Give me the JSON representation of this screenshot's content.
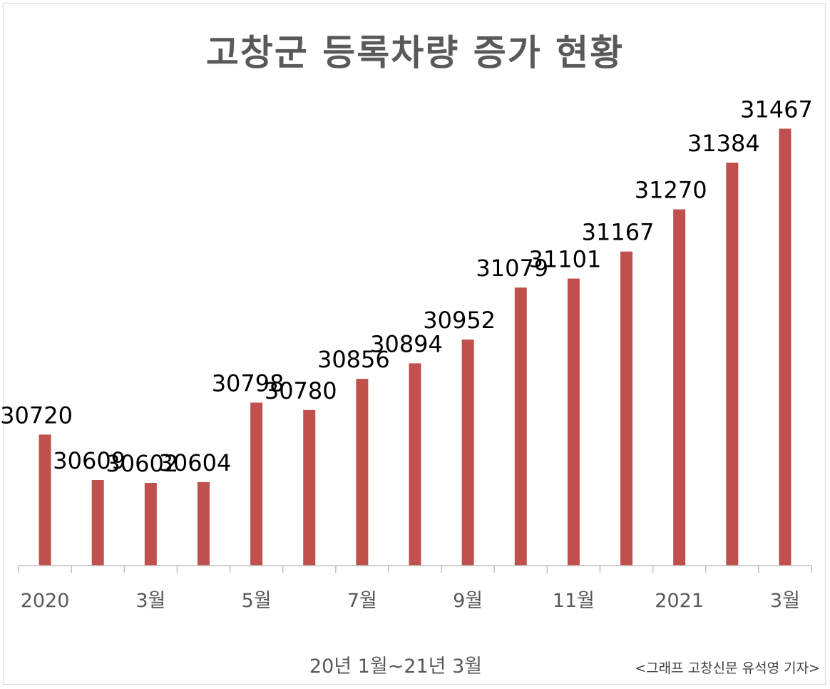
{
  "chart_data": {
    "type": "bar",
    "title": "고창군 등록차량 증가 현황",
    "xlabel": "20년 1월~21년 3월",
    "ylabel": "",
    "categories": [
      "2020",
      "",
      "3월",
      "",
      "5월",
      "",
      "7월",
      "",
      "9월",
      "",
      "11월",
      "",
      "2021",
      "",
      "3월"
    ],
    "values": [
      30720,
      30609,
      30602,
      30604,
      30798,
      30780,
      30856,
      30894,
      30952,
      31079,
      31101,
      31167,
      31270,
      31384,
      31467
    ],
    "ylim": [
      30400,
      31520
    ],
    "color": "#c0504d",
    "grid": false,
    "legend": "none"
  },
  "source_note": "<그래프 고창신문 유석영 기자>"
}
